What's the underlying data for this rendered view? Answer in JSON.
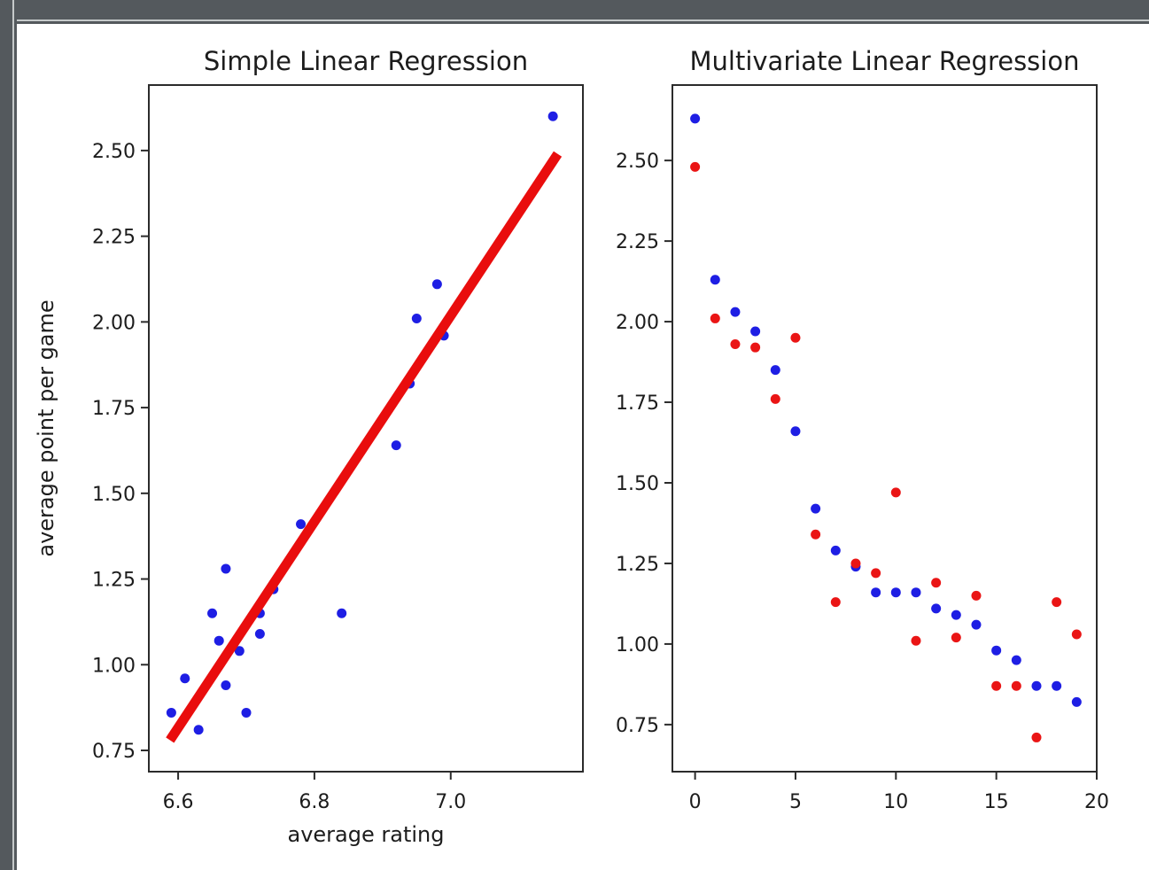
{
  "window": {
    "frame_color": "#54595d",
    "frame_highlight_color": "#c6caca",
    "background_color": "#ffffff"
  },
  "figure": {
    "text_color": "#1c1c1c",
    "frame_color": "#2b2b2b"
  },
  "chart_data": [
    {
      "type": "scatter",
      "title": "Simple Linear Regression",
      "xlabel": "average rating",
      "ylabel": "average point per game",
      "xlim": [
        6.557,
        7.194
      ],
      "ylim": [
        0.688,
        2.691
      ],
      "xticks": [
        6.6,
        6.8,
        7.0
      ],
      "xtick_labels": [
        "6.6",
        "6.8",
        "7.0"
      ],
      "yticks": [
        0.75,
        1.0,
        1.25,
        1.5,
        1.75,
        2.0,
        2.25,
        2.5
      ],
      "ytick_labels": [
        "0.75",
        "1.00",
        "1.25",
        "1.50",
        "1.75",
        "2.00",
        "2.25",
        "2.50"
      ],
      "grid": false,
      "legend": null,
      "series": [
        {
          "name": "data-points",
          "kind": "scatter",
          "color": "#1e1ee4",
          "points": [
            [
              6.59,
              0.86
            ],
            [
              6.61,
              0.96
            ],
            [
              6.63,
              0.81
            ],
            [
              6.65,
              1.15
            ],
            [
              6.66,
              1.07
            ],
            [
              6.67,
              1.28
            ],
            [
              6.67,
              0.94
            ],
            [
              6.69,
              1.04
            ],
            [
              6.7,
              0.86
            ],
            [
              6.72,
              1.15
            ],
            [
              6.72,
              1.09
            ],
            [
              6.74,
              1.22
            ],
            [
              6.78,
              1.41
            ],
            [
              6.84,
              1.15
            ],
            [
              6.92,
              1.64
            ],
            [
              6.94,
              1.82
            ],
            [
              6.95,
              2.01
            ],
            [
              6.98,
              2.11
            ],
            [
              6.99,
              1.96
            ],
            [
              7.15,
              2.6
            ]
          ]
        },
        {
          "name": "regression-line",
          "kind": "line",
          "color": "#e90d0d",
          "points": [
            [
              6.588,
              0.78
            ],
            [
              7.157,
              2.49
            ]
          ]
        }
      ]
    },
    {
      "type": "scatter",
      "title": "Multivariate Linear Regression",
      "xlabel": "",
      "ylabel": "",
      "xlim": [
        -1.13,
        20.0
      ],
      "ylim": [
        0.604,
        2.734
      ],
      "xticks": [
        0,
        5,
        10,
        15,
        20
      ],
      "xtick_labels": [
        "0",
        "5",
        "10",
        "15",
        "20"
      ],
      "yticks": [
        0.75,
        1.0,
        1.25,
        1.5,
        1.75,
        2.0,
        2.25,
        2.5
      ],
      "ytick_labels": [
        "0.75",
        "1.00",
        "1.25",
        "1.50",
        "1.75",
        "2.00",
        "2.25",
        "2.50"
      ],
      "grid": false,
      "legend": null,
      "series": [
        {
          "name": "actual-values",
          "kind": "scatter",
          "color": "#1e1ee4",
          "points": [
            [
              0,
              2.63
            ],
            [
              1,
              2.13
            ],
            [
              2,
              2.03
            ],
            [
              3,
              1.97
            ],
            [
              4,
              1.85
            ],
            [
              5,
              1.66
            ],
            [
              6,
              1.42
            ],
            [
              7,
              1.29
            ],
            [
              8,
              1.24
            ],
            [
              9,
              1.16
            ],
            [
              10,
              1.16
            ],
            [
              11,
              1.16
            ],
            [
              12,
              1.11
            ],
            [
              13,
              1.09
            ],
            [
              14,
              1.06
            ],
            [
              15,
              0.98
            ],
            [
              16,
              0.95
            ],
            [
              17,
              0.87
            ],
            [
              18,
              0.87
            ],
            [
              19,
              0.82
            ]
          ]
        },
        {
          "name": "predicted-values",
          "kind": "scatter",
          "color": "#ea1515",
          "points": [
            [
              0,
              2.48
            ],
            [
              1,
              2.01
            ],
            [
              2,
              1.93
            ],
            [
              3,
              1.92
            ],
            [
              4,
              1.76
            ],
            [
              5,
              1.95
            ],
            [
              6,
              1.34
            ],
            [
              7,
              1.13
            ],
            [
              8,
              1.25
            ],
            [
              9,
              1.22
            ],
            [
              10,
              1.47
            ],
            [
              11,
              1.01
            ],
            [
              12,
              1.19
            ],
            [
              13,
              1.02
            ],
            [
              14,
              1.15
            ],
            [
              15,
              0.87
            ],
            [
              16,
              0.87
            ],
            [
              17,
              0.71
            ],
            [
              18,
              1.13
            ],
            [
              19,
              1.03
            ]
          ]
        }
      ]
    }
  ]
}
